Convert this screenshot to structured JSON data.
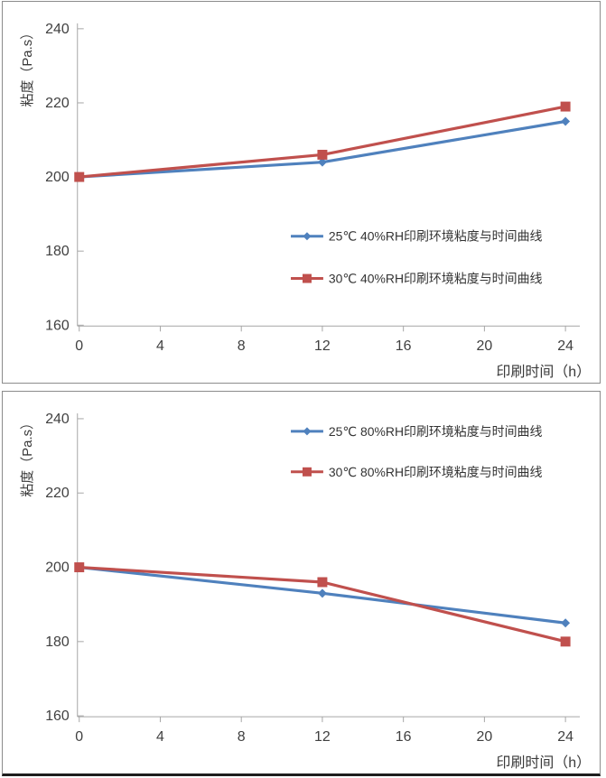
{
  "page": {
    "background": "#ffffff",
    "frame_border_color": "#8c8c8c",
    "bottom_bar_color": "#1e1e1e",
    "axis_color": "#a6a6a6",
    "tick_label_color": "#404040",
    "axis_title_color": "#3a3a3a"
  },
  "chart_data": [
    {
      "type": "line",
      "title": "",
      "xlabel": "印刷时间（h）",
      "ylabel": "粘度（Pa.s）",
      "x": [
        0,
        12,
        24
      ],
      "xticks": [
        0,
        4,
        8,
        12,
        16,
        20,
        24
      ],
      "yticks": [
        160,
        180,
        200,
        220,
        240
      ],
      "xlim": [
        0,
        24
      ],
      "ylim": [
        160,
        240
      ],
      "grid": false,
      "legend_position": "inside-middle-right",
      "legend_ys": [
        261,
        308
      ],
      "series": [
        {
          "name": "25℃ 40%RH印刷环境粘度与时间曲线",
          "color": "#4F81BD",
          "marker": "diamond",
          "values": [
            200,
            204,
            215
          ]
        },
        {
          "name": "30℃ 40%RH印刷环境粘度与时间曲线",
          "color": "#C0504D",
          "marker": "square",
          "values": [
            200,
            206,
            219
          ]
        }
      ]
    },
    {
      "type": "line",
      "title": "",
      "xlabel": "印刷时间（h）",
      "ylabel": "粘度（Pa.s）",
      "x": [
        0,
        12,
        24
      ],
      "xticks": [
        0,
        4,
        8,
        12,
        16,
        20,
        24
      ],
      "yticks": [
        160,
        180,
        200,
        220,
        240
      ],
      "xlim": [
        0,
        24
      ],
      "ylim": [
        160,
        240
      ],
      "grid": false,
      "legend_position": "inside-top-right",
      "legend_ys": [
        44,
        89
      ],
      "series": [
        {
          "name": "25℃ 80%RH印刷环境粘度与时间曲线",
          "color": "#4F81BD",
          "marker": "diamond",
          "values": [
            200,
            193,
            185
          ]
        },
        {
          "name": "30℃ 80%RH印刷环境粘度与时间曲线",
          "color": "#C0504D",
          "marker": "square",
          "values": [
            200,
            196,
            180
          ]
        }
      ]
    }
  ]
}
